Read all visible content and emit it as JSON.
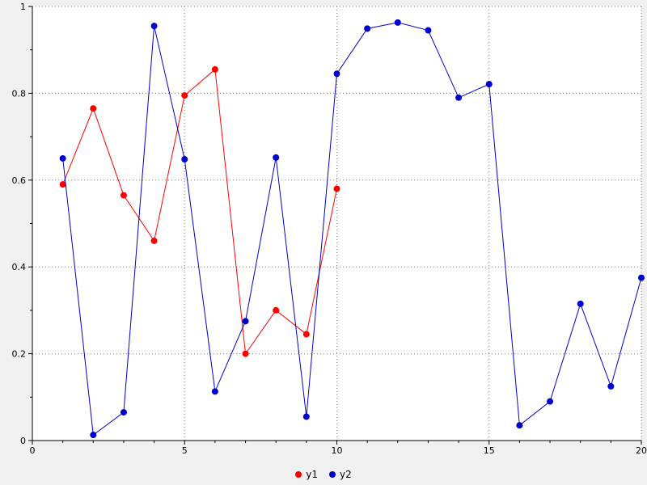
{
  "figure": {
    "background": "#f0f0f0",
    "plot_background": "#ffffff",
    "axis_color": "#000000",
    "grid_color": "#808080",
    "tick_label_color": "#000000"
  },
  "chart_data": {
    "type": "line",
    "title": "",
    "xlabel": "",
    "ylabel": "",
    "xlim": [
      0,
      20
    ],
    "ylim": [
      0,
      1
    ],
    "x_ticks": [
      0,
      5,
      10,
      15,
      20
    ],
    "x_tick_labels": [
      "0",
      "5",
      "10",
      "15",
      "20"
    ],
    "y_ticks": [
      0,
      0.2,
      0.4,
      0.6,
      0.8,
      1
    ],
    "y_tick_labels": [
      "0",
      "0.2",
      "0.4",
      "0.6",
      "0.8",
      "1"
    ],
    "x_minor_step": 1,
    "y_minor_step": 0.1,
    "grid": true,
    "grid_style": "dotted",
    "legend_position": "bottom-center",
    "marker": "circle",
    "series": [
      {
        "name": "y1",
        "color": "#ff0000",
        "x": [
          1,
          2,
          3,
          4,
          5,
          6,
          7,
          8,
          9,
          10
        ],
        "y": [
          0.59,
          0.765,
          0.565,
          0.46,
          0.795,
          0.855,
          0.2,
          0.3,
          0.245,
          0.58
        ]
      },
      {
        "name": "y2",
        "color": "#0000cc",
        "x": [
          1,
          2,
          3,
          4,
          5,
          6,
          7,
          8,
          9,
          10,
          11,
          12,
          13,
          14,
          15,
          16,
          17,
          18,
          19,
          20
        ],
        "y": [
          0.65,
          0.013,
          0.065,
          0.955,
          0.648,
          0.113,
          0.275,
          0.652,
          0.055,
          0.845,
          0.949,
          0.963,
          0.945,
          0.79,
          0.821,
          0.035,
          0.09,
          0.315,
          0.125,
          0.375
        ]
      }
    ]
  }
}
